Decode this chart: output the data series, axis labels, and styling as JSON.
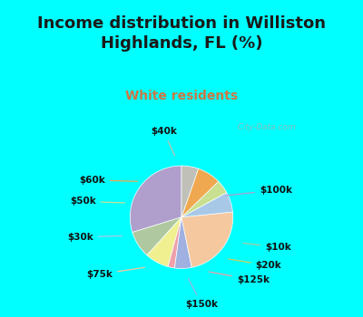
{
  "title": "Income distribution in Williston\nHighlands, FL (%)",
  "subtitle": "White residents",
  "background_color": "#00FFFF",
  "slices": [
    {
      "label": "$100k",
      "value": 28,
      "color": "#b09fcc"
    },
    {
      "label": "$10k",
      "value": 8,
      "color": "#b0c8a0"
    },
    {
      "label": "$20k",
      "value": 7,
      "color": "#f0f090"
    },
    {
      "label": "$125k",
      "value": 2,
      "color": "#f0a0a8"
    },
    {
      "label": "$150k",
      "value": 5,
      "color": "#a0b0e0"
    },
    {
      "label": "$75k",
      "value": 22,
      "color": "#f5c8a0"
    },
    {
      "label": "$30k",
      "value": 6,
      "color": "#a8c8e8"
    },
    {
      "label": "$50k",
      "value": 4,
      "color": "#c8e090"
    },
    {
      "label": "$60k",
      "value": 7,
      "color": "#f0a850"
    },
    {
      "label": "$40k",
      "value": 5,
      "color": "#c0c0b8"
    }
  ],
  "annotations": [
    {
      "label": "$100k",
      "near": [
        0.6,
        0.3
      ],
      "far": [
        1.32,
        0.38
      ],
      "lcolor": "#b09fcc"
    },
    {
      "label": "$10k",
      "near": [
        0.83,
        -0.36
      ],
      "far": [
        1.35,
        -0.42
      ],
      "lcolor": "#b0c8a0"
    },
    {
      "label": "$20k",
      "near": [
        0.62,
        -0.58
      ],
      "far": [
        1.22,
        -0.68
      ],
      "lcolor": "#d0d060"
    },
    {
      "label": "$125k",
      "near": [
        0.35,
        -0.76
      ],
      "far": [
        1.0,
        -0.88
      ],
      "lcolor": "#f0a0a8"
    },
    {
      "label": "$150k",
      "near": [
        0.08,
        -0.83
      ],
      "far": [
        0.28,
        -1.22
      ],
      "lcolor": "#a0b0e0"
    },
    {
      "label": "$75k",
      "near": [
        -0.48,
        -0.7
      ],
      "far": [
        -1.15,
        -0.8
      ],
      "lcolor": "#f5c8a0"
    },
    {
      "label": "$30k",
      "near": [
        -0.8,
        -0.26
      ],
      "far": [
        -1.42,
        -0.28
      ],
      "lcolor": "#a8c8e8"
    },
    {
      "label": "$50k",
      "near": [
        -0.76,
        0.2
      ],
      "far": [
        -1.38,
        0.22
      ],
      "lcolor": "#c8e090"
    },
    {
      "label": "$60k",
      "near": [
        -0.58,
        0.5
      ],
      "far": [
        -1.25,
        0.52
      ],
      "lcolor": "#f0a850"
    },
    {
      "label": "$40k",
      "near": [
        -0.08,
        0.83
      ],
      "far": [
        -0.25,
        1.2
      ],
      "lcolor": "#c0c0b8"
    }
  ],
  "watermark": "  City-Data.com"
}
